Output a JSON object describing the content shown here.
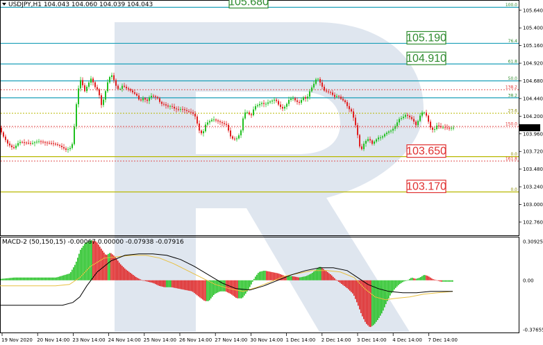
{
  "header": {
    "symbol_info": "USDJPY,H1  104.043 104.060 104.039 104.043",
    "macd_info": "MACD-2 (50,150,15) -0.00067 0.00000 -0.07938 -0.07916"
  },
  "colors": {
    "bull": "#20c020",
    "bear": "#e02020",
    "teal_line": "#1a9fb8",
    "olive_line": "#b8b800",
    "green_box": "#2e8b2e",
    "red_box": "#e03030",
    "watermark": "#dfe6ef"
  },
  "price_axis": {
    "ticks": [
      "105.640",
      "105.400",
      "105.160",
      "104.920",
      "104.680",
      "104.440",
      "104.200",
      "103.960",
      "103.720",
      "103.480",
      "103.240",
      "103.000",
      "102.760"
    ],
    "current_price": "104.043"
  },
  "macd_axis": {
    "ticks": [
      "0.30925",
      "0.00",
      "-0.37655"
    ]
  },
  "time_axis": {
    "labels": [
      "19 Nov 2020",
      "20 Nov 14:00",
      "23 Nov 14:00",
      "24 Nov 14:00",
      "25 Nov 14:00",
      "26 Nov 14:00",
      "27 Nov 14:00",
      "30 Nov 14:00",
      "1 Dec 14:00",
      "2 Dec 14:00",
      "3 Dec 14:00",
      "4 Dec 14:00",
      "7 Dec 14:00"
    ]
  },
  "levels": [
    {
      "label": "100.0",
      "price": 105.68,
      "box": "105.680",
      "box_color": "green"
    },
    {
      "label": "76.4",
      "price": 105.19,
      "box": "105.190",
      "box_color": "green"
    },
    {
      "label": "61.8",
      "price": 104.91,
      "box": "104.910",
      "box_color": "green"
    },
    {
      "label": "50.0",
      "price": 104.68
    },
    {
      "label": "138.2",
      "price": 104.56
    },
    {
      "label": "38.2",
      "price": 104.45
    },
    {
      "label": "23.6",
      "price": 104.24
    },
    {
      "label": "150.0",
      "price": 104.06
    },
    {
      "label": "0.0",
      "price": 103.65,
      "box": "103.650",
      "box_color": "red"
    },
    {
      "label": "161.8",
      "price": 103.59
    },
    {
      "label": "0.0",
      "price": 103.17,
      "box": "103.170",
      "box_color": "red"
    }
  ],
  "chart_data": {
    "type": "candlestick",
    "symbol": "USDJPY,H1",
    "price_range": [
      102.58,
      105.77
    ],
    "price_path": [
      [
        0,
        104.03
      ],
      [
        5,
        103.93
      ],
      [
        12,
        103.82
      ],
      [
        20,
        103.76
      ],
      [
        28,
        103.85
      ],
      [
        36,
        103.84
      ],
      [
        46,
        103.83
      ],
      [
        56,
        103.86
      ],
      [
        66,
        103.84
      ],
      [
        76,
        103.83
      ],
      [
        86,
        103.8
      ],
      [
        96,
        103.74
      ],
      [
        104,
        103.78
      ],
      [
        108,
        104.1
      ],
      [
        112,
        104.52
      ],
      [
        117,
        104.71
      ],
      [
        122,
        104.53
      ],
      [
        127,
        104.63
      ],
      [
        132,
        104.72
      ],
      [
        137,
        104.6
      ],
      [
        142,
        104.55
      ],
      [
        147,
        104.33
      ],
      [
        152,
        104.52
      ],
      [
        157,
        104.72
      ],
      [
        162,
        104.76
      ],
      [
        167,
        104.62
      ],
      [
        172,
        104.55
      ],
      [
        177,
        104.62
      ],
      [
        182,
        104.58
      ],
      [
        187,
        104.56
      ],
      [
        192,
        104.52
      ],
      [
        197,
        104.49
      ],
      [
        202,
        104.4
      ],
      [
        207,
        104.45
      ],
      [
        212,
        104.4
      ],
      [
        217,
        104.48
      ],
      [
        222,
        104.47
      ],
      [
        227,
        104.45
      ],
      [
        232,
        104.37
      ],
      [
        237,
        104.36
      ],
      [
        242,
        104.33
      ],
      [
        247,
        104.34
      ],
      [
        252,
        104.3
      ],
      [
        257,
        104.29
      ],
      [
        262,
        104.3
      ],
      [
        267,
        104.28
      ],
      [
        272,
        104.26
      ],
      [
        277,
        104.25
      ],
      [
        282,
        104.19
      ],
      [
        287,
        104.01
      ],
      [
        292,
        103.95
      ],
      [
        297,
        104.1
      ],
      [
        302,
        104.13
      ],
      [
        307,
        104.16
      ],
      [
        312,
        104.14
      ],
      [
        317,
        104.12
      ],
      [
        322,
        104.1
      ],
      [
        327,
        104.08
      ],
      [
        332,
        103.93
      ],
      [
        337,
        103.88
      ],
      [
        342,
        103.9
      ],
      [
        347,
        103.98
      ],
      [
        352,
        104.25
      ],
      [
        357,
        104.25
      ],
      [
        362,
        104.2
      ],
      [
        367,
        104.33
      ],
      [
        372,
        104.35
      ],
      [
        377,
        104.38
      ],
      [
        382,
        104.36
      ],
      [
        387,
        104.39
      ],
      [
        392,
        104.41
      ],
      [
        397,
        104.43
      ],
      [
        402,
        104.35
      ],
      [
        407,
        104.3
      ],
      [
        412,
        104.34
      ],
      [
        417,
        104.43
      ],
      [
        422,
        104.45
      ],
      [
        427,
        104.4
      ],
      [
        432,
        104.38
      ],
      [
        437,
        104.46
      ],
      [
        442,
        104.43
      ],
      [
        447,
        104.55
      ],
      [
        452,
        104.63
      ],
      [
        457,
        104.73
      ],
      [
        462,
        104.65
      ],
      [
        467,
        104.55
      ],
      [
        472,
        104.53
      ],
      [
        477,
        104.52
      ],
      [
        482,
        104.46
      ],
      [
        487,
        104.48
      ],
      [
        492,
        104.43
      ],
      [
        497,
        104.4
      ],
      [
        502,
        104.31
      ],
      [
        507,
        104.26
      ],
      [
        512,
        104.1
      ],
      [
        516,
        103.92
      ],
      [
        520,
        103.71
      ],
      [
        524,
        103.82
      ],
      [
        528,
        103.87
      ],
      [
        532,
        103.9
      ],
      [
        536,
        103.82
      ],
      [
        540,
        103.86
      ],
      [
        545,
        103.91
      ],
      [
        550,
        103.91
      ],
      [
        555,
        103.96
      ],
      [
        560,
        103.99
      ],
      [
        565,
        104.01
      ],
      [
        570,
        104.07
      ],
      [
        575,
        104.16
      ],
      [
        580,
        104.18
      ],
      [
        585,
        104.22
      ],
      [
        590,
        104.19
      ],
      [
        595,
        104.15
      ],
      [
        600,
        104.07
      ],
      [
        605,
        104.2
      ],
      [
        610,
        104.27
      ],
      [
        615,
        104.2
      ],
      [
        620,
        104.05
      ],
      [
        625,
        104.0
      ],
      [
        630,
        104.08
      ],
      [
        635,
        104.05
      ],
      [
        640,
        104.05
      ],
      [
        645,
        104.04
      ],
      [
        650,
        104.04
      ],
      [
        654,
        104.043
      ]
    ],
    "macd": {
      "range": [
        -0.37655,
        0.30925
      ],
      "histogram": [
        [
          0,
          0.01
        ],
        [
          20,
          0.02
        ],
        [
          50,
          0.02
        ],
        [
          80,
          0.02
        ],
        [
          100,
          0.05
        ],
        [
          108,
          0.12
        ],
        [
          115,
          0.22
        ],
        [
          122,
          0.27
        ],
        [
          130,
          0.29
        ],
        [
          138,
          0.28
        ],
        [
          146,
          0.22
        ],
        [
          152,
          0.18
        ],
        [
          158,
          0.2
        ],
        [
          165,
          0.17
        ],
        [
          172,
          0.12
        ],
        [
          180,
          0.08
        ],
        [
          188,
          0.05
        ],
        [
          196,
          0.02
        ],
        [
          204,
          0.0
        ],
        [
          212,
          -0.01
        ],
        [
          220,
          -0.02
        ],
        [
          228,
          -0.04
        ],
        [
          236,
          -0.05
        ],
        [
          246,
          -0.05
        ],
        [
          256,
          -0.06
        ],
        [
          266,
          -0.07
        ],
        [
          276,
          -0.08
        ],
        [
          286,
          -0.12
        ],
        [
          294,
          -0.15
        ],
        [
          300,
          -0.15
        ],
        [
          308,
          -0.1
        ],
        [
          316,
          -0.08
        ],
        [
          324,
          -0.08
        ],
        [
          332,
          -0.1
        ],
        [
          340,
          -0.13
        ],
        [
          348,
          -0.13
        ],
        [
          354,
          -0.09
        ],
        [
          360,
          -0.04
        ],
        [
          366,
          0.02
        ],
        [
          372,
          0.06
        ],
        [
          380,
          0.07
        ],
        [
          390,
          0.06
        ],
        [
          400,
          0.05
        ],
        [
          410,
          0.03
        ],
        [
          420,
          0.03
        ],
        [
          430,
          0.02
        ],
        [
          440,
          0.03
        ],
        [
          448,
          0.05
        ],
        [
          455,
          0.08
        ],
        [
          460,
          0.1
        ],
        [
          468,
          0.07
        ],
        [
          476,
          0.04
        ],
        [
          484,
          0.0
        ],
        [
          492,
          -0.03
        ],
        [
          500,
          -0.06
        ],
        [
          508,
          -0.1
        ],
        [
          514,
          -0.17
        ],
        [
          520,
          -0.25
        ],
        [
          526,
          -0.31
        ],
        [
          532,
          -0.34
        ],
        [
          538,
          -0.32
        ],
        [
          544,
          -0.28
        ],
        [
          550,
          -0.23
        ],
        [
          556,
          -0.16
        ],
        [
          562,
          -0.1
        ],
        [
          568,
          -0.06
        ],
        [
          574,
          -0.03
        ],
        [
          580,
          -0.01
        ],
        [
          586,
          0.0
        ],
        [
          592,
          0.02
        ],
        [
          598,
          0.01
        ],
        [
          604,
          0.02
        ],
        [
          610,
          0.04
        ],
        [
          616,
          0.03
        ],
        [
          622,
          0.01
        ],
        [
          628,
          0.0
        ],
        [
          634,
          -0.01
        ],
        [
          640,
          -0.01
        ],
        [
          646,
          -0.01
        ],
        [
          652,
          -0.01
        ]
      ],
      "signal": [
        [
          0,
          -0.04
        ],
        [
          40,
          -0.04
        ],
        [
          80,
          -0.04
        ],
        [
          100,
          -0.03
        ],
        [
          115,
          0.02
        ],
        [
          130,
          0.1
        ],
        [
          150,
          0.16
        ],
        [
          170,
          0.17
        ],
        [
          190,
          0.18
        ],
        [
          210,
          0.18
        ],
        [
          230,
          0.16
        ],
        [
          250,
          0.12
        ],
        [
          270,
          0.07
        ],
        [
          290,
          0.02
        ],
        [
          310,
          -0.03
        ],
        [
          330,
          -0.06
        ],
        [
          350,
          -0.08
        ],
        [
          370,
          -0.05
        ],
        [
          390,
          -0.01
        ],
        [
          410,
          0.03
        ],
        [
          430,
          0.05
        ],
        [
          450,
          0.07
        ],
        [
          470,
          0.07
        ],
        [
          490,
          0.06
        ],
        [
          510,
          0.02
        ],
        [
          525,
          -0.06
        ],
        [
          540,
          -0.12
        ],
        [
          555,
          -0.14
        ],
        [
          570,
          -0.13
        ],
        [
          590,
          -0.12
        ],
        [
          610,
          -0.1
        ],
        [
          630,
          -0.09
        ],
        [
          652,
          -0.08
        ]
      ],
      "main": [
        [
          0,
          -0.18
        ],
        [
          30,
          -0.18
        ],
        [
          60,
          -0.18
        ],
        [
          90,
          -0.18
        ],
        [
          105,
          -0.16
        ],
        [
          115,
          -0.12
        ],
        [
          125,
          -0.04
        ],
        [
          140,
          0.06
        ],
        [
          160,
          0.14
        ],
        [
          180,
          0.18
        ],
        [
          200,
          0.19
        ],
        [
          220,
          0.19
        ],
        [
          240,
          0.18
        ],
        [
          260,
          0.15
        ],
        [
          280,
          0.1
        ],
        [
          300,
          0.04
        ],
        [
          320,
          -0.02
        ],
        [
          340,
          -0.06
        ],
        [
          360,
          -0.07
        ],
        [
          380,
          -0.04
        ],
        [
          400,
          0.0
        ],
        [
          420,
          0.04
        ],
        [
          440,
          0.07
        ],
        [
          460,
          0.09
        ],
        [
          480,
          0.09
        ],
        [
          500,
          0.07
        ],
        [
          515,
          0.02
        ],
        [
          530,
          -0.03
        ],
        [
          545,
          -0.06
        ],
        [
          560,
          -0.08
        ],
        [
          580,
          -0.09
        ],
        [
          600,
          -0.09
        ],
        [
          620,
          -0.08
        ],
        [
          640,
          -0.08
        ],
        [
          652,
          -0.08
        ]
      ]
    }
  }
}
